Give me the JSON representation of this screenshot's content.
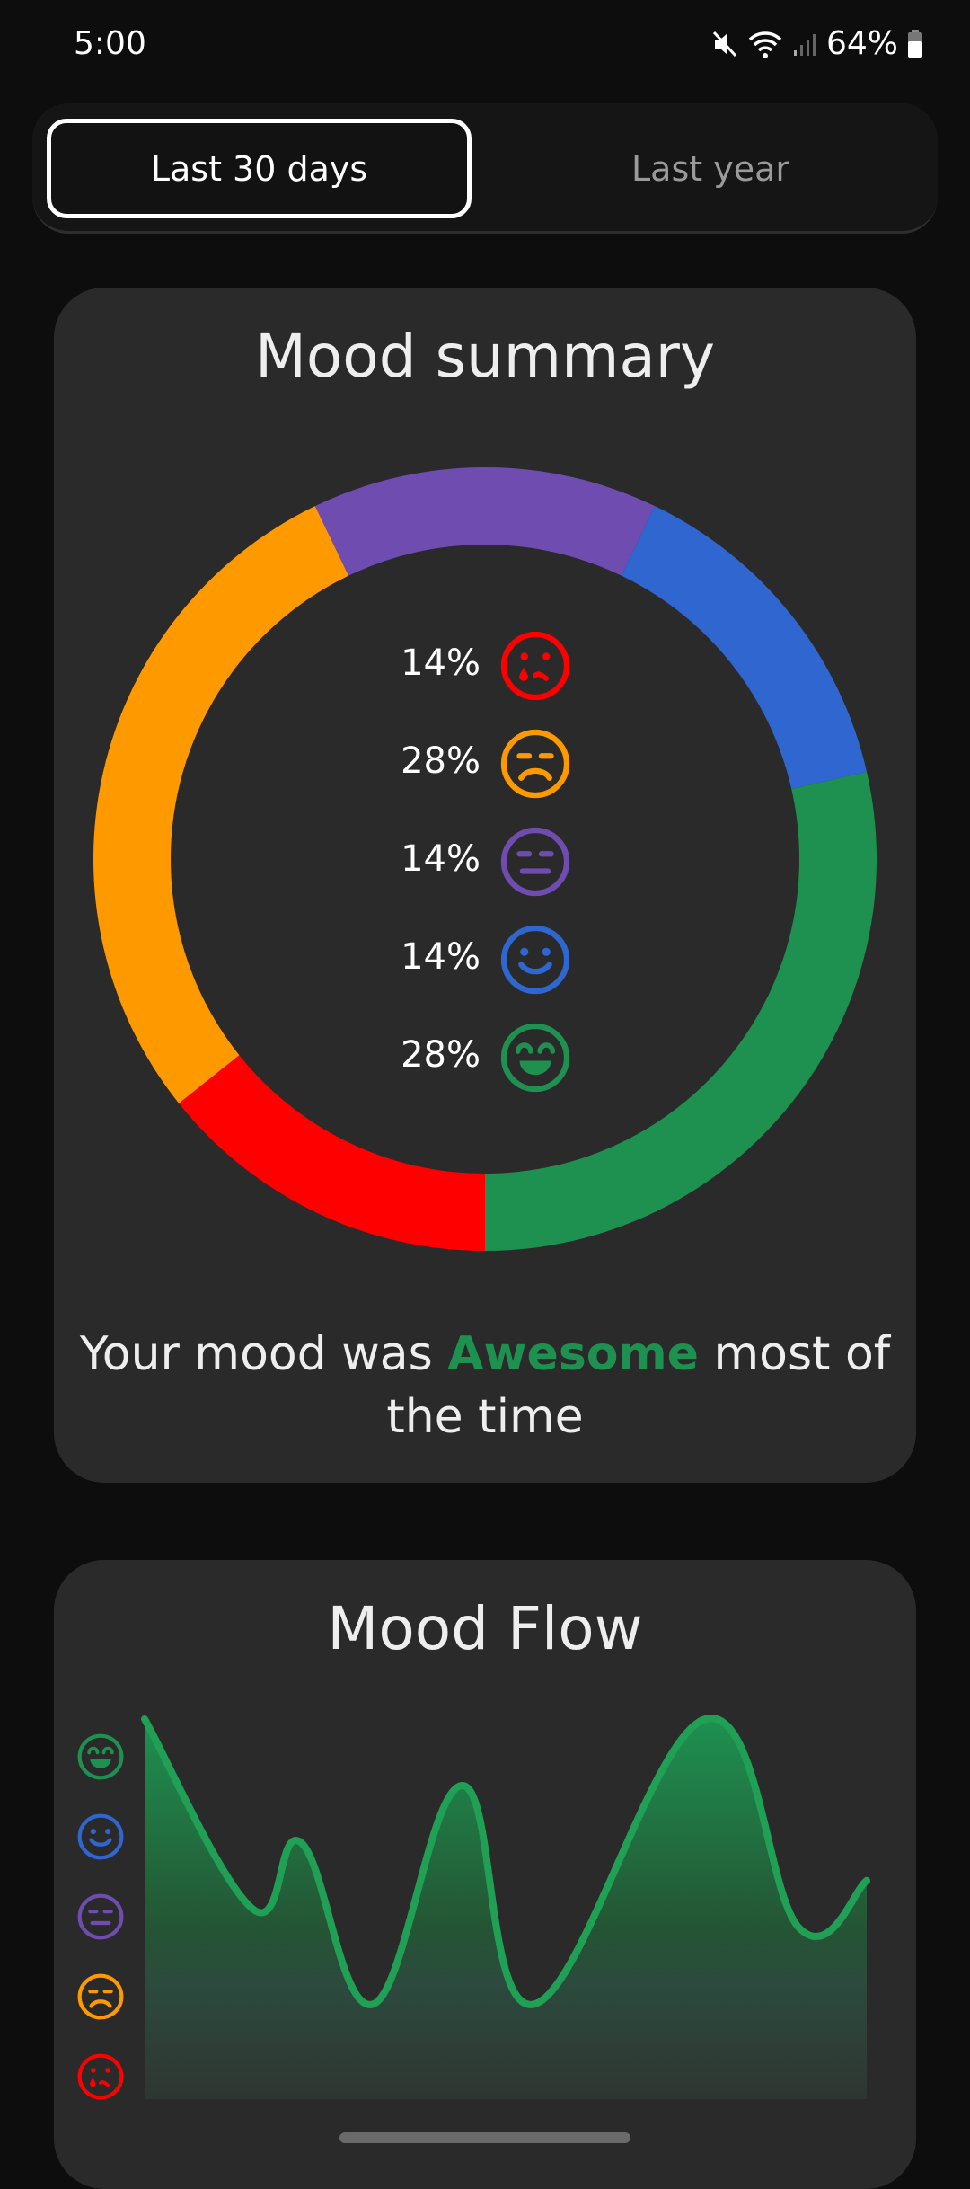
{
  "status_bar": {
    "time": "5:00",
    "battery": "64%",
    "icons": [
      "mute-icon",
      "wifi-icon",
      "signal-icon",
      "battery-icon"
    ]
  },
  "tabs": [
    {
      "label": "Last 30 days",
      "selected": true
    },
    {
      "label": "Last year",
      "selected": false
    }
  ],
  "colors": {
    "awful": "#ff0000",
    "bad": "#ff9900",
    "meh": "#6f4db0",
    "good": "#2f66d0",
    "awesome": "#1e9150",
    "card": "#2a2a2a",
    "background": "#0d0d0d"
  },
  "mood_summary": {
    "title": "Mood summary",
    "legend": [
      {
        "mood": "awful",
        "icon": "crying-face-icon",
        "percent": "14%"
      },
      {
        "mood": "bad",
        "icon": "sad-face-icon",
        "percent": "28%"
      },
      {
        "mood": "meh",
        "icon": "neutral-face-icon",
        "percent": "14%"
      },
      {
        "mood": "good",
        "icon": "smile-face-icon",
        "percent": "14%"
      },
      {
        "mood": "awesome",
        "icon": "grin-face-icon",
        "percent": "28%"
      }
    ],
    "summary_prefix": "Your mood was ",
    "summary_highlight": "Awesome",
    "summary_suffix": " most of the time"
  },
  "mood_flow": {
    "title": "Mood Flow"
  },
  "chart_data": [
    {
      "type": "pie",
      "variant": "donut",
      "categories": [
        "awful",
        "bad",
        "meh",
        "good",
        "awesome"
      ],
      "values": [
        14,
        28,
        14,
        14,
        28
      ],
      "colors": [
        "#ff0000",
        "#ff9900",
        "#6f4db0",
        "#2f66d0",
        "#1e9150"
      ]
    },
    {
      "type": "area",
      "y_categories": [
        "awful",
        "bad",
        "meh",
        "good",
        "awesome"
      ],
      "ylim": [
        1,
        5
      ],
      "x": [
        0,
        4.5,
        6.5,
        9.5,
        13.2,
        16.2,
        23.3,
        27.2,
        30
      ],
      "values": [
        5,
        3,
        3.7,
        2,
        4.3,
        2,
        5,
        2.8,
        3.3
      ],
      "color": "#1e9150",
      "grid": false
    }
  ]
}
